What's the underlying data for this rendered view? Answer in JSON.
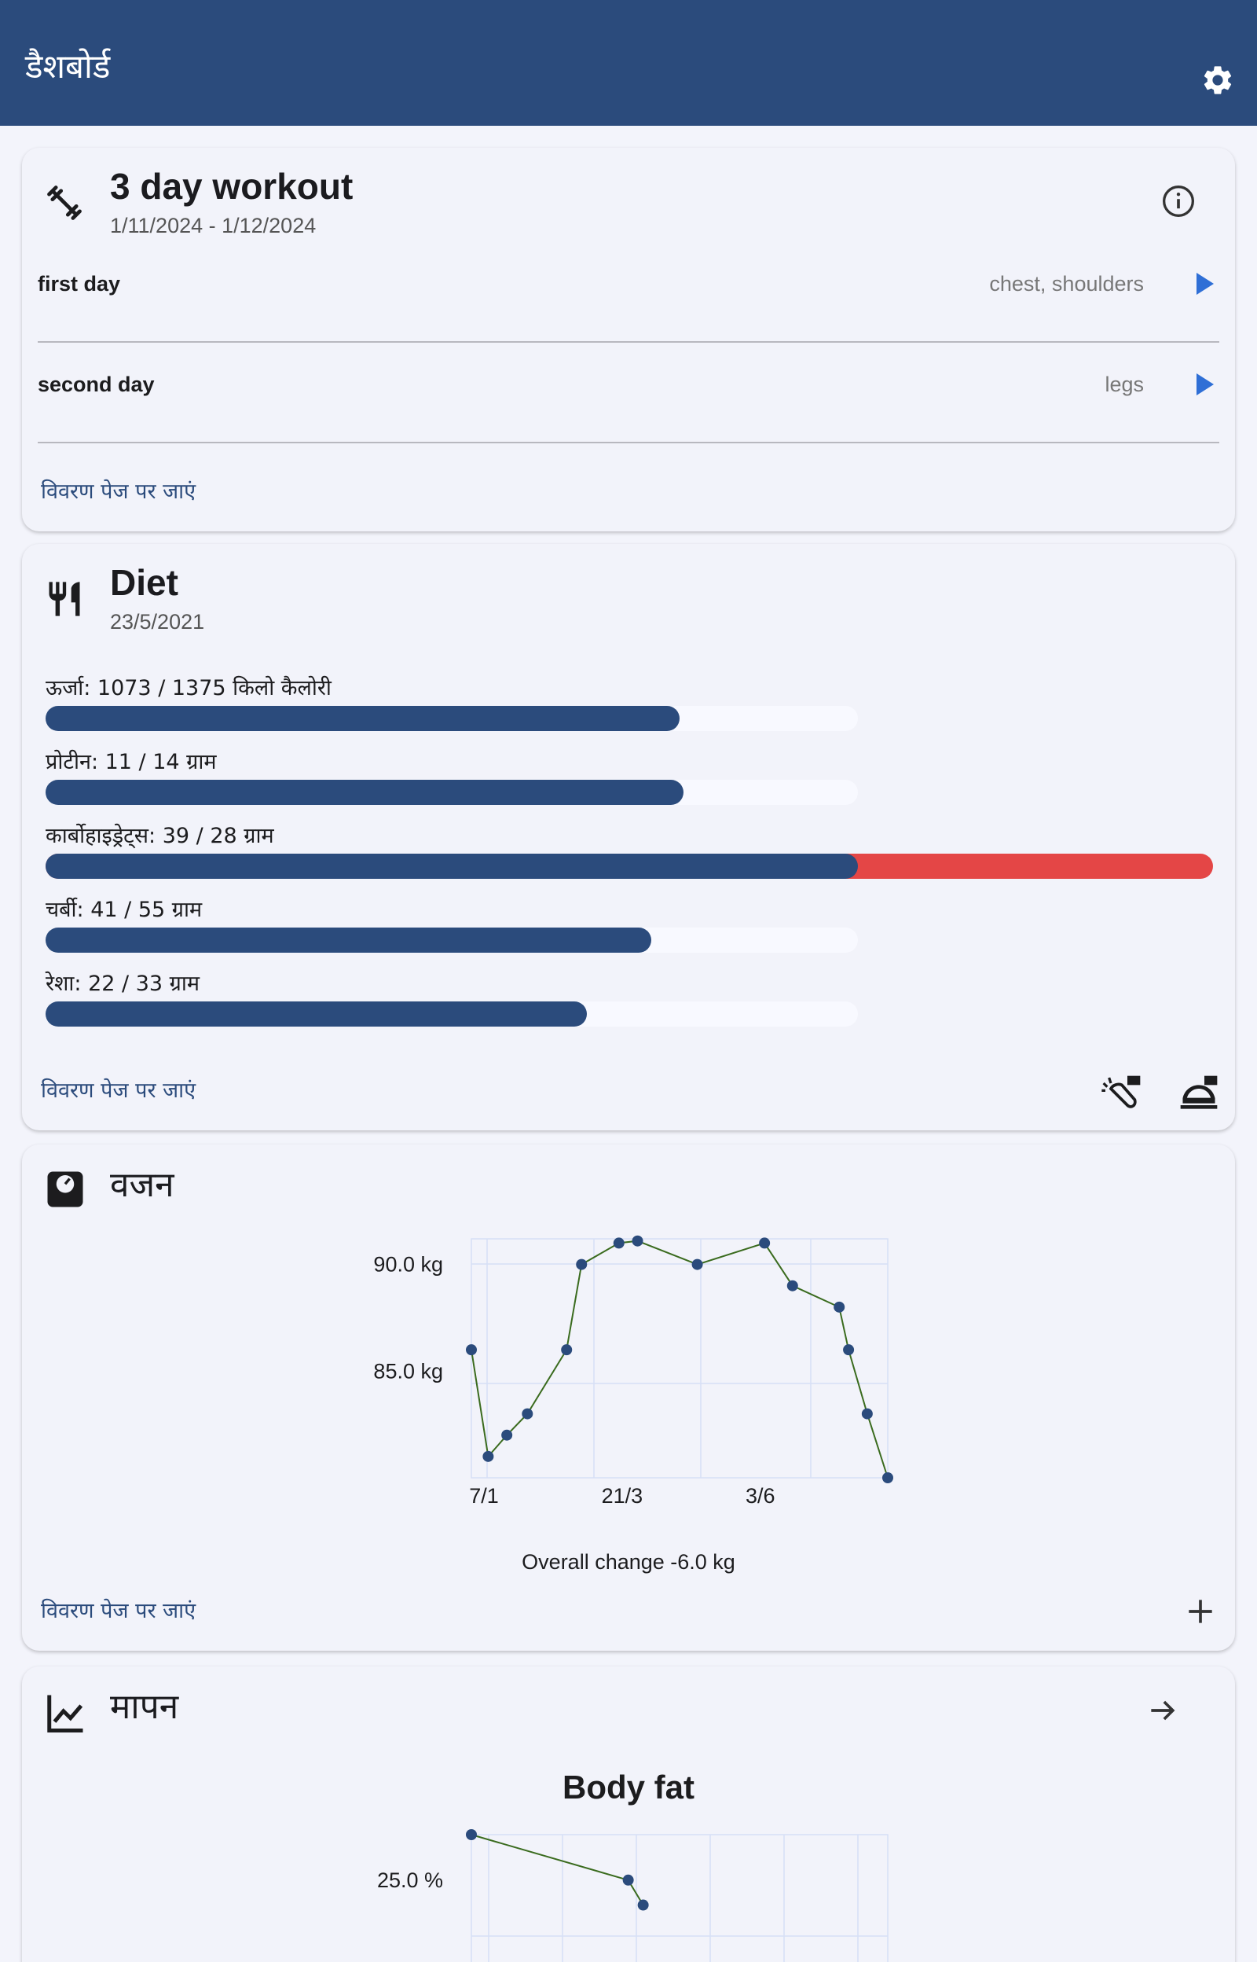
{
  "appbar": {
    "title": "डैशबोर्ड",
    "settings_icon": "gear-icon"
  },
  "workout": {
    "icon": "dumbbell-icon",
    "title": "3 day workout",
    "date_range": "1/11/2024 - 1/12/2024",
    "info_icon": "info-icon",
    "days": [
      {
        "label": "first day",
        "muscles": "chest, shoulders"
      },
      {
        "label": "second day",
        "muscles": "legs"
      }
    ],
    "link": "विवरण पेज पर जाएं"
  },
  "diet": {
    "icon": "cutlery-icon",
    "title": "Diet",
    "date": "23/5/2021",
    "nutrients": [
      {
        "label": "ऊर्जा: 1073 / 1375 किलो कैलोरी",
        "value": 1073,
        "goal": 1375
      },
      {
        "label": "प्रोटीन: 11 / 14 ग्राम",
        "value": 11,
        "goal": 14
      },
      {
        "label": "कार्बोहाइड्रेट्स: 39 / 28 ग्राम",
        "value": 39,
        "goal": 28
      },
      {
        "label": "चर्बी: 41 / 55 ग्राम",
        "value": 41,
        "goal": 55
      },
      {
        "label": "रेशा: 22 / 33 ग्राम",
        "value": 22,
        "goal": 33
      }
    ],
    "link": "विवरण पेज पर जाएं",
    "action_icons": [
      "add-ingredient-icon",
      "add-meal-icon"
    ],
    "colors": {
      "fill": "#2b4b7c",
      "over": "#e44646",
      "track": "#f8f9ff"
    }
  },
  "weight": {
    "icon": "scale-icon",
    "title": "वजन",
    "summary": "Overall change -6.0 kg",
    "link": "विवरण पेज पर जाएं",
    "add_icon": "plus-icon"
  },
  "measurements": {
    "icon": "line-chart-icon",
    "title": "मापन",
    "arrow_icon": "arrow-right-icon"
  },
  "chart_data": [
    {
      "type": "line",
      "title": "",
      "ylabel": "",
      "y_tick_labels": [
        "85.0 kg",
        "90.0 kg"
      ],
      "y_ticks": [
        85,
        90
      ],
      "x_tick_labels": [
        "7/1",
        "21/3",
        "3/6"
      ],
      "x_ticks": [
        0,
        74,
        148
      ],
      "xlim": [
        0,
        223
      ],
      "ylim": [
        80,
        91.2
      ],
      "x": [
        0,
        9,
        19,
        30,
        51,
        59,
        79,
        89,
        121,
        157,
        172,
        197,
        202,
        212,
        223
      ],
      "values": [
        86.0,
        81.0,
        82.0,
        83.0,
        86.0,
        90.0,
        91.0,
        91.1,
        90.0,
        91.0,
        89.0,
        88.0,
        86.0,
        83.0,
        80.0
      ],
      "grid": true,
      "colors": {
        "line": "#3a6b1e",
        "point": "#2b4b7c",
        "grid": "#d6e0f6"
      }
    },
    {
      "type": "line",
      "title": "Body fat",
      "ylabel": "",
      "y_tick_labels": [
        "25.0 %"
      ],
      "y_ticks": [
        25
      ],
      "x_tick_labels": [],
      "xlim": [
        0,
        223
      ],
      "ylim": [
        18,
        27
      ],
      "x": [
        0,
        84,
        92
      ],
      "values": [
        27.0,
        25.0,
        23.9
      ],
      "grid": true,
      "colors": {
        "line": "#3a6b1e",
        "point": "#2b4b7c",
        "grid": "#d6e0f6"
      }
    }
  ]
}
